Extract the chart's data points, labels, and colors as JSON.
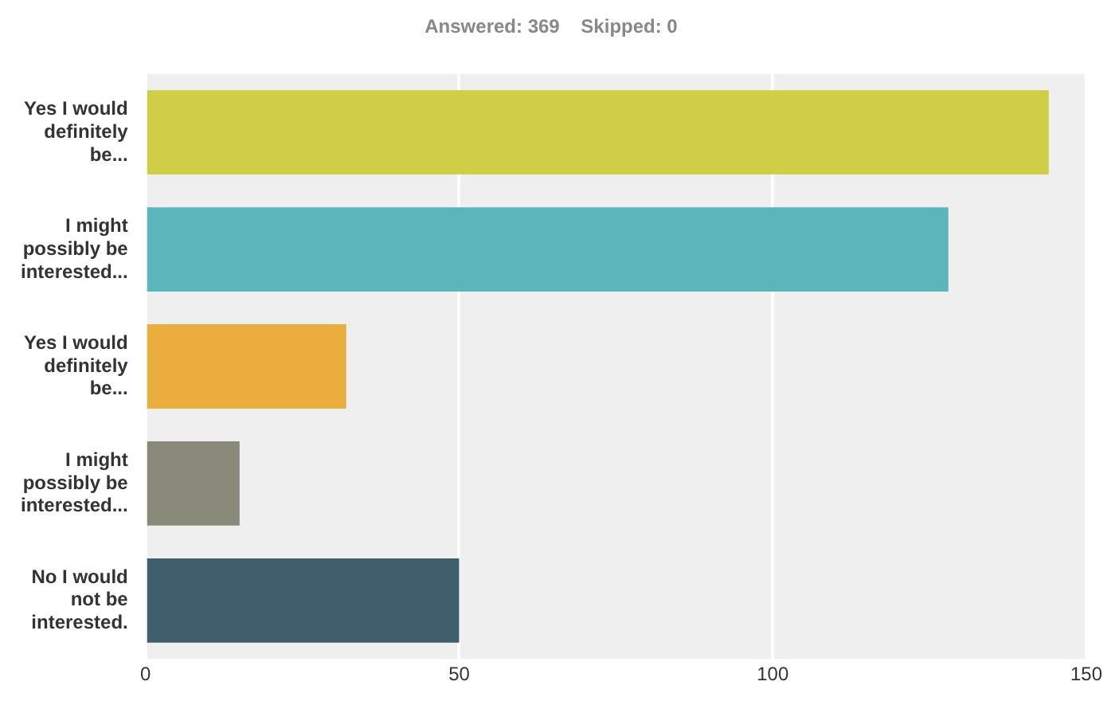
{
  "chart_data": {
    "type": "bar",
    "orientation": "horizontal",
    "title": "Answered: 369    Skipped: 0",
    "categories": [
      "Yes I would definitely be...",
      "I might possibly be interested...",
      "Yes I would definitely be...",
      "I might possibly be interested...",
      "No I would not be interested."
    ],
    "values": [
      144,
      128,
      32,
      15,
      50
    ],
    "colors": [
      "#d0cd47",
      "#5bb5bb",
      "#ebae3e",
      "#8a8a7a",
      "#3e5f6b"
    ],
    "xlim": [
      0,
      150
    ],
    "xticks": [
      0,
      50,
      100,
      150
    ],
    "grid": "x",
    "legend": false
  }
}
